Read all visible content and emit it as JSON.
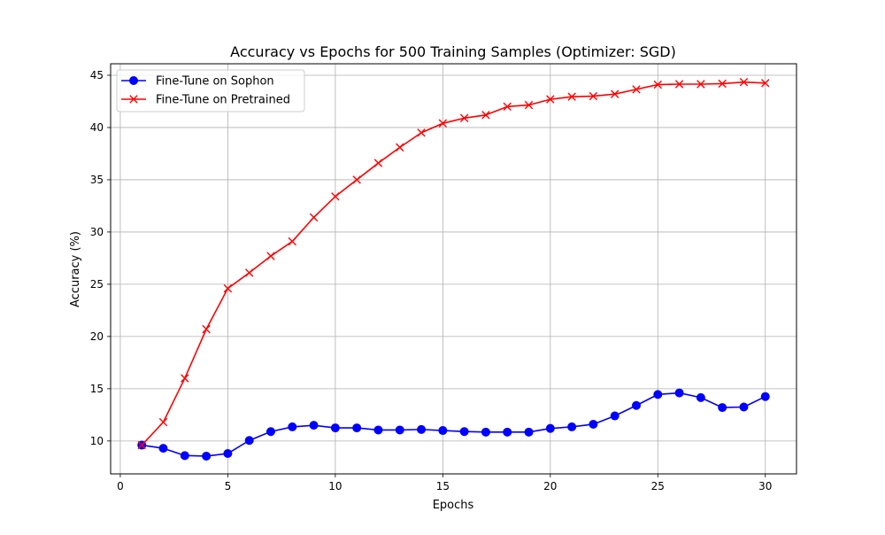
{
  "chart_data": {
    "type": "line",
    "title": "Accuracy vs Epochs for 500 Training Samples (Optimizer: SGD)",
    "xlabel": "Epochs",
    "ylabel": "Accuracy (%)",
    "xlim": [
      -0.45,
      31.45
    ],
    "ylim": [
      6.85,
      46.1
    ],
    "xticks": [
      0,
      5,
      10,
      15,
      20,
      25,
      30
    ],
    "yticks": [
      10,
      15,
      20,
      25,
      30,
      35,
      40,
      45
    ],
    "grid": true,
    "legend_position": "upper-left",
    "x": [
      1,
      2,
      3,
      4,
      5,
      6,
      7,
      8,
      9,
      10,
      11,
      12,
      13,
      14,
      15,
      16,
      17,
      18,
      19,
      20,
      21,
      22,
      23,
      24,
      25,
      26,
      27,
      28,
      29,
      30
    ],
    "series": [
      {
        "name": "Fine-Tune on Sophon",
        "color": "#0000ff",
        "marker": "circle",
        "values": [
          9.6,
          9.3,
          8.6,
          8.55,
          8.8,
          10.05,
          10.9,
          11.35,
          11.5,
          11.25,
          11.25,
          11.05,
          11.05,
          11.1,
          11.0,
          10.9,
          10.85,
          10.85,
          10.85,
          11.2,
          11.35,
          11.6,
          12.4,
          13.4,
          14.45,
          14.6,
          14.15,
          13.2,
          13.25,
          14.25
        ]
      },
      {
        "name": "Fine-Tune on Pretrained",
        "color": "#ff0000",
        "marker": "x",
        "values": [
          9.6,
          11.8,
          16.0,
          20.7,
          24.6,
          26.1,
          27.7,
          29.1,
          31.4,
          33.4,
          35.0,
          36.6,
          38.1,
          39.5,
          40.4,
          40.9,
          41.2,
          42.0,
          42.15,
          42.7,
          42.95,
          43.0,
          43.2,
          43.65,
          44.1,
          44.15,
          44.15,
          44.2,
          44.35,
          44.25
        ]
      }
    ]
  }
}
